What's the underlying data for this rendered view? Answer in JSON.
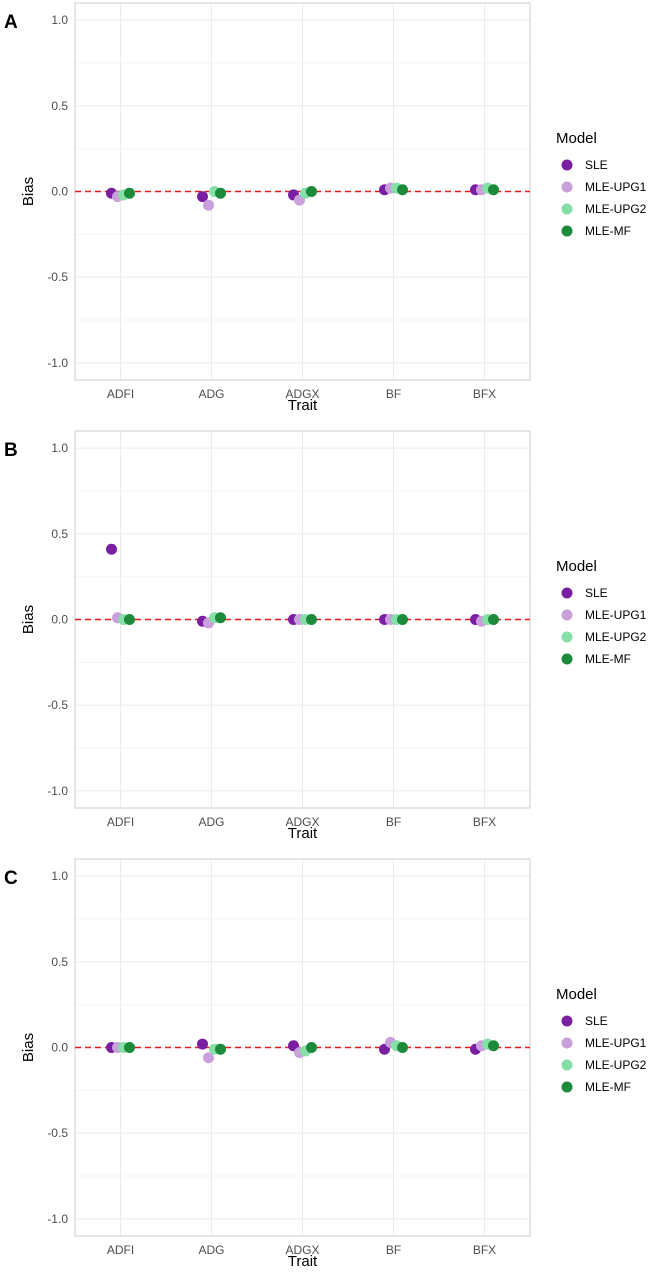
{
  "colors": {
    "SLE": "#7b1fa2",
    "MLE-UPG1": "#c9a0dc",
    "MLE-UPG2": "#86dfa6",
    "MLE-MF": "#1b8a3a",
    "reference_line": "#e41a1c",
    "grid_major": "#ebebeb",
    "grid_minor": "#f5f5f5",
    "panel_border": "#cccccc"
  },
  "chart_data": [
    {
      "panel_label": "A",
      "type": "scatter",
      "xlabel": "Trait",
      "ylabel": "Bias",
      "categories": [
        "ADFI",
        "ADG",
        "ADGX",
        "BF",
        "BFX"
      ],
      "ylim": [
        -1.1,
        1.1
      ],
      "yticks": [
        -1.0,
        -0.5,
        0.0,
        0.5,
        1.0
      ],
      "ytick_labels": [
        "-1.0",
        "-0.5",
        "0.0",
        "0.5",
        "1.0"
      ],
      "reference_line": 0,
      "grid": true,
      "legend": {
        "title": "Model",
        "position": "right"
      },
      "series": [
        {
          "name": "SLE",
          "values": [
            -0.01,
            -0.03,
            -0.02,
            0.01,
            0.01
          ]
        },
        {
          "name": "MLE-UPG1",
          "values": [
            -0.03,
            -0.08,
            -0.05,
            0.02,
            0.01
          ]
        },
        {
          "name": "MLE-UPG2",
          "values": [
            -0.02,
            0.0,
            -0.01,
            0.02,
            0.02
          ]
        },
        {
          "name": "MLE-MF",
          "values": [
            -0.01,
            -0.01,
            0.0,
            0.01,
            0.01
          ]
        }
      ]
    },
    {
      "panel_label": "B",
      "type": "scatter",
      "xlabel": "Trait",
      "ylabel": "Bias",
      "categories": [
        "ADFI",
        "ADG",
        "ADGX",
        "BF",
        "BFX"
      ],
      "ylim": [
        -1.1,
        1.1
      ],
      "yticks": [
        -1.0,
        -0.5,
        0.0,
        0.5,
        1.0
      ],
      "ytick_labels": [
        "-1.0",
        "-0.5",
        "0.0",
        "0.5",
        "1.0"
      ],
      "reference_line": 0,
      "grid": true,
      "legend": {
        "title": "Model",
        "position": "right"
      },
      "series": [
        {
          "name": "SLE",
          "values": [
            0.41,
            -0.01,
            0.0,
            0.0,
            0.0
          ]
        },
        {
          "name": "MLE-UPG1",
          "values": [
            0.01,
            -0.02,
            0.0,
            0.0,
            -0.01
          ]
        },
        {
          "name": "MLE-UPG2",
          "values": [
            0.0,
            0.01,
            0.0,
            0.0,
            0.0
          ]
        },
        {
          "name": "MLE-MF",
          "values": [
            0.0,
            0.01,
            0.0,
            0.0,
            0.0
          ]
        }
      ]
    },
    {
      "panel_label": "C",
      "type": "scatter",
      "xlabel": "Trait",
      "ylabel": "Bias",
      "categories": [
        "ADFI",
        "ADG",
        "ADGX",
        "BF",
        "BFX"
      ],
      "ylim": [
        -1.1,
        1.1
      ],
      "yticks": [
        -1.0,
        -0.5,
        0.0,
        0.5,
        1.0
      ],
      "ytick_labels": [
        "-1.0",
        "-0.5",
        "0.0",
        "0.5",
        "1.0"
      ],
      "reference_line": 0,
      "grid": true,
      "legend": {
        "title": "Model",
        "position": "right"
      },
      "series": [
        {
          "name": "SLE",
          "values": [
            0.0,
            0.02,
            0.01,
            -0.01,
            -0.01
          ]
        },
        {
          "name": "MLE-UPG1",
          "values": [
            0.0,
            -0.06,
            -0.03,
            0.03,
            0.01
          ]
        },
        {
          "name": "MLE-UPG2",
          "values": [
            0.0,
            -0.01,
            -0.02,
            0.01,
            0.02
          ]
        },
        {
          "name": "MLE-MF",
          "values": [
            0.0,
            -0.01,
            0.0,
            0.0,
            0.01
          ]
        }
      ]
    }
  ]
}
